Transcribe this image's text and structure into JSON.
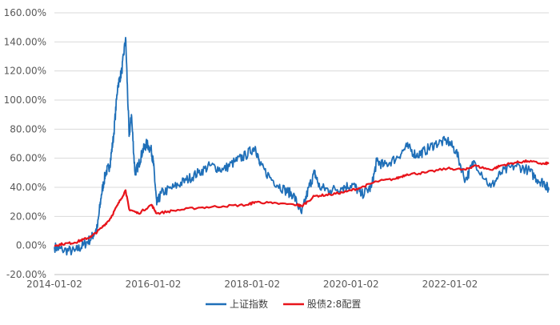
{
  "chart_data": {
    "type": "line",
    "title": "",
    "xlabel": "",
    "ylabel": "",
    "x_ticks": [
      "2014-01-02",
      "2016-01-02",
      "2018-01-02",
      "2020-01-02",
      "2022-01-02"
    ],
    "y_ticks": [
      "160.00%",
      "140.00%",
      "120.00%",
      "100.00%",
      "80.00%",
      "60.00%",
      "40.00%",
      "20.00%",
      "0.00%",
      "-20.00%"
    ],
    "ylim": [
      -20,
      160
    ],
    "xlim": [
      "2014-01-02",
      "2024-01-02"
    ],
    "grid": "horizontal",
    "legend": "bottom",
    "series": [
      {
        "name": "上证指数",
        "color": "#1F6FB8",
        "points": [
          [
            "2014-01-02",
            -1
          ],
          [
            "2014-03-01",
            -3
          ],
          [
            "2014-06-01",
            -4
          ],
          [
            "2014-08-01",
            0
          ],
          [
            "2014-10-01",
            5
          ],
          [
            "2014-11-15",
            12
          ],
          [
            "2014-12-15",
            35
          ],
          [
            "2015-01-15",
            50
          ],
          [
            "2015-02-15",
            55
          ],
          [
            "2015-03-15",
            75
          ],
          [
            "2015-04-15",
            110
          ],
          [
            "2015-05-15",
            120
          ],
          [
            "2015-06-12",
            143
          ],
          [
            "2015-07-08",
            75
          ],
          [
            "2015-07-25",
            90
          ],
          [
            "2015-08-20",
            50
          ],
          [
            "2015-09-15",
            55
          ],
          [
            "2015-10-15",
            65
          ],
          [
            "2015-11-15",
            70
          ],
          [
            "2015-12-20",
            65
          ],
          [
            "2016-01-05",
            55
          ],
          [
            "2016-01-28",
            28
          ],
          [
            "2016-03-01",
            36
          ],
          [
            "2016-06-01",
            40
          ],
          [
            "2016-09-01",
            45
          ],
          [
            "2016-12-01",
            50
          ],
          [
            "2017-03-01",
            55
          ],
          [
            "2017-06-01",
            52
          ],
          [
            "2017-09-01",
            58
          ],
          [
            "2017-11-15",
            62
          ],
          [
            "2018-01-25",
            68
          ],
          [
            "2018-03-01",
            55
          ],
          [
            "2018-06-01",
            45
          ],
          [
            "2018-09-01",
            38
          ],
          [
            "2018-11-01",
            35
          ],
          [
            "2019-01-02",
            22
          ],
          [
            "2019-02-25",
            40
          ],
          [
            "2019-04-08",
            50
          ],
          [
            "2019-05-15",
            40
          ],
          [
            "2019-08-01",
            38
          ],
          [
            "2019-11-01",
            40
          ],
          [
            "2020-01-15",
            42
          ],
          [
            "2020-03-19",
            35
          ],
          [
            "2020-06-01",
            40
          ],
          [
            "2020-07-10",
            58
          ],
          [
            "2020-09-01",
            55
          ],
          [
            "2020-12-01",
            60
          ],
          [
            "2021-02-18",
            68
          ],
          [
            "2021-05-01",
            62
          ],
          [
            "2021-07-01",
            65
          ],
          [
            "2021-09-15",
            70
          ],
          [
            "2021-12-15",
            72
          ],
          [
            "2022-02-15",
            65
          ],
          [
            "2022-04-26",
            45
          ],
          [
            "2022-07-01",
            58
          ],
          [
            "2022-10-31",
            40
          ],
          [
            "2023-01-15",
            50
          ],
          [
            "2023-05-01",
            55
          ],
          [
            "2023-08-01",
            52
          ],
          [
            "2023-10-15",
            45
          ],
          [
            "2023-12-01",
            43
          ],
          [
            "2024-01-02",
            38
          ]
        ]
      },
      {
        "name": "股债2:8配置",
        "color": "#E8141B",
        "points": [
          [
            "2014-01-02",
            0
          ],
          [
            "2014-03-01",
            1
          ],
          [
            "2014-06-01",
            2
          ],
          [
            "2014-08-01",
            4
          ],
          [
            "2014-10-01",
            6
          ],
          [
            "2014-12-15",
            12
          ],
          [
            "2015-02-15",
            18
          ],
          [
            "2015-04-15",
            28
          ],
          [
            "2015-06-12",
            38
          ],
          [
            "2015-07-08",
            25
          ],
          [
            "2015-09-15",
            22
          ],
          [
            "2015-12-20",
            28
          ],
          [
            "2016-01-28",
            22
          ],
          [
            "2016-06-01",
            24
          ],
          [
            "2016-12-01",
            26
          ],
          [
            "2017-06-01",
            27
          ],
          [
            "2017-12-01",
            28
          ],
          [
            "2018-01-25",
            30
          ],
          [
            "2018-06-01",
            29
          ],
          [
            "2018-12-01",
            28
          ],
          [
            "2019-01-02",
            27
          ],
          [
            "2019-04-08",
            34
          ],
          [
            "2019-08-01",
            35
          ],
          [
            "2019-12-01",
            37
          ],
          [
            "2020-03-19",
            40
          ],
          [
            "2020-07-10",
            44
          ],
          [
            "2020-12-01",
            46
          ],
          [
            "2021-02-18",
            49
          ],
          [
            "2021-07-01",
            50
          ],
          [
            "2021-12-15",
            53
          ],
          [
            "2022-04-26",
            52
          ],
          [
            "2022-07-01",
            55
          ],
          [
            "2022-10-31",
            52
          ],
          [
            "2023-01-15",
            55
          ],
          [
            "2023-05-01",
            57
          ],
          [
            "2023-08-01",
            58
          ],
          [
            "2023-12-01",
            56
          ],
          [
            "2024-01-02",
            57
          ]
        ]
      }
    ]
  }
}
